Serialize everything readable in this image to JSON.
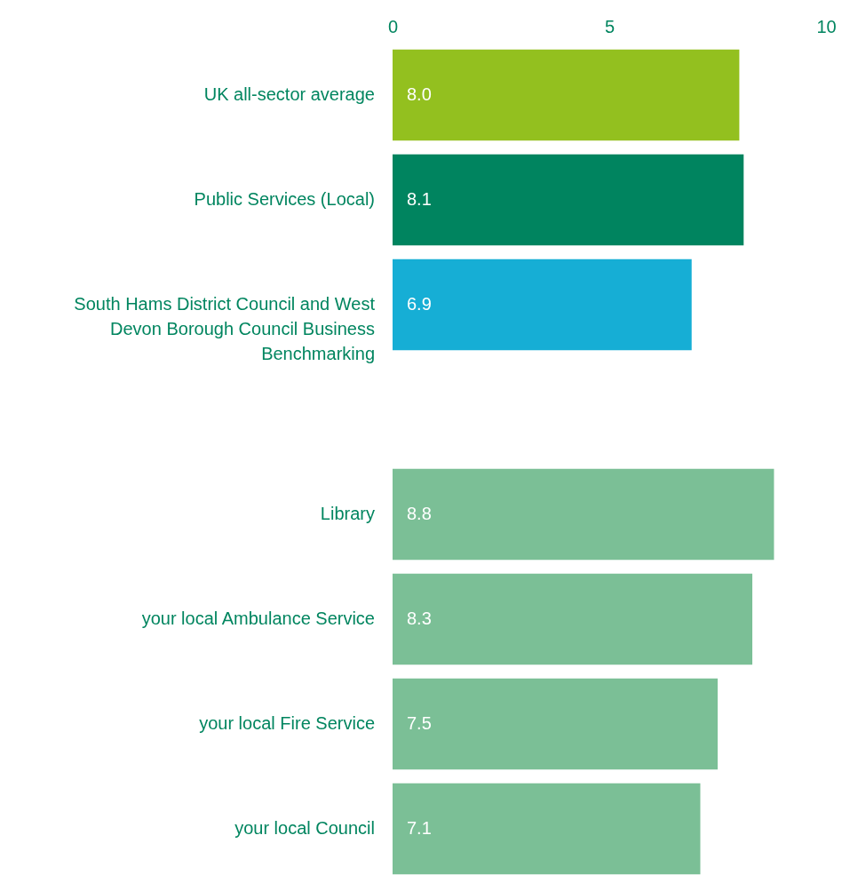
{
  "chart_data": {
    "type": "bar",
    "orientation": "horizontal",
    "categories": [
      "UK all-sector average",
      "Public Services (Local)",
      "South Hams District Council and West Devon Borough Council Business Benchmarking",
      null,
      "Library",
      "your local Ambulance Service",
      "your local Fire Service",
      "your local Council"
    ],
    "values": [
      8.0,
      8.1,
      6.9,
      null,
      8.8,
      8.3,
      7.5,
      7.1
    ],
    "colors": [
      "#93c01f",
      "#00845f",
      "#16aed5",
      null,
      "#7bbf96",
      "#7bbf96",
      "#7bbf96",
      "#7bbf96"
    ],
    "value_labels": [
      "8.0",
      "8.1",
      "6.9",
      null,
      "8.8",
      "8.3",
      "7.5",
      "7.1"
    ],
    "xlim": [
      0,
      10
    ],
    "xticks": [
      0,
      5,
      10
    ],
    "grid": false
  }
}
